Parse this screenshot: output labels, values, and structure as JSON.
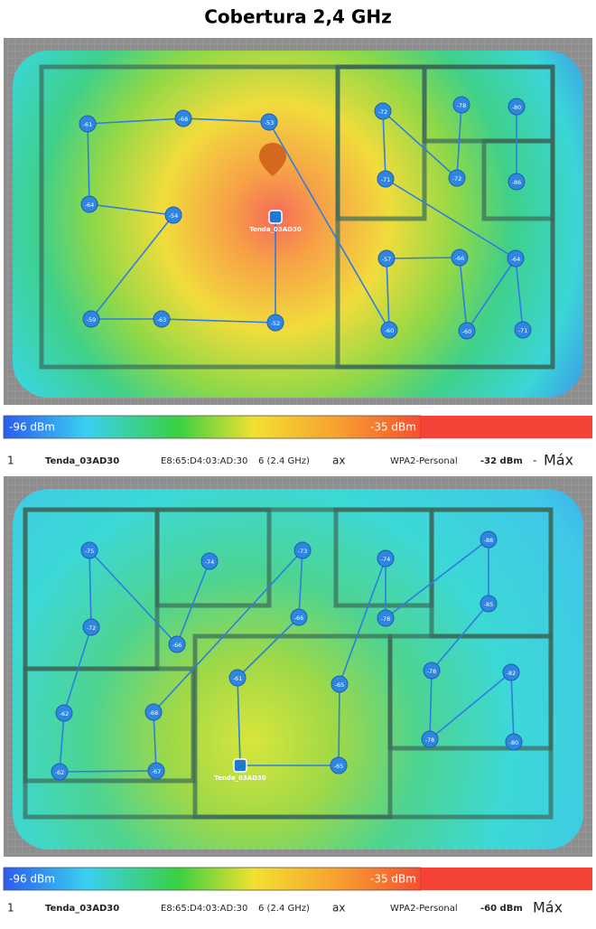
{
  "title": "Cobertura 2,4 GHz",
  "panels": [
    {
      "router": "Tenda_03AD30",
      "points": [
        -61,
        -68,
        -53,
        -64,
        -54,
        -59,
        -63,
        -52,
        -72,
        -78,
        -80,
        -71,
        -72,
        -86,
        -57,
        -66,
        -64,
        -60,
        -60,
        -71
      ],
      "scale": {
        "min_label": "-96 dBm",
        "max_label": "-35 dBm"
      },
      "info": {
        "index": "1",
        "ssid": "Tenda_03AD30",
        "bssid": "E8:65:D4:03:AD:30",
        "channel": "6 (2.4 GHz)",
        "standard": "ax",
        "security": "WPA2-Personal",
        "signal": "-32 dBm",
        "separator": "-",
        "mode": "Máx"
      }
    },
    {
      "router": "Tenda_03AD30",
      "points": [
        -75,
        -74,
        -73,
        -74,
        -88,
        -72,
        -66,
        -66,
        -78,
        -85,
        -61,
        -65,
        -78,
        -82,
        -62,
        -68,
        -78,
        -80,
        -62,
        -67,
        -65
      ],
      "scale": {
        "min_label": "-96 dBm",
        "max_label": "-35 dBm"
      },
      "info": {
        "index": "1",
        "ssid": "Tenda_03AD30",
        "bssid": "E8:65:D4:03:AD:30",
        "channel": "6 (2.4 GHz)",
        "standard": "ax",
        "security": "WPA2-Personal",
        "signal": "-60 dBm",
        "mode": "Máx"
      }
    }
  ]
}
